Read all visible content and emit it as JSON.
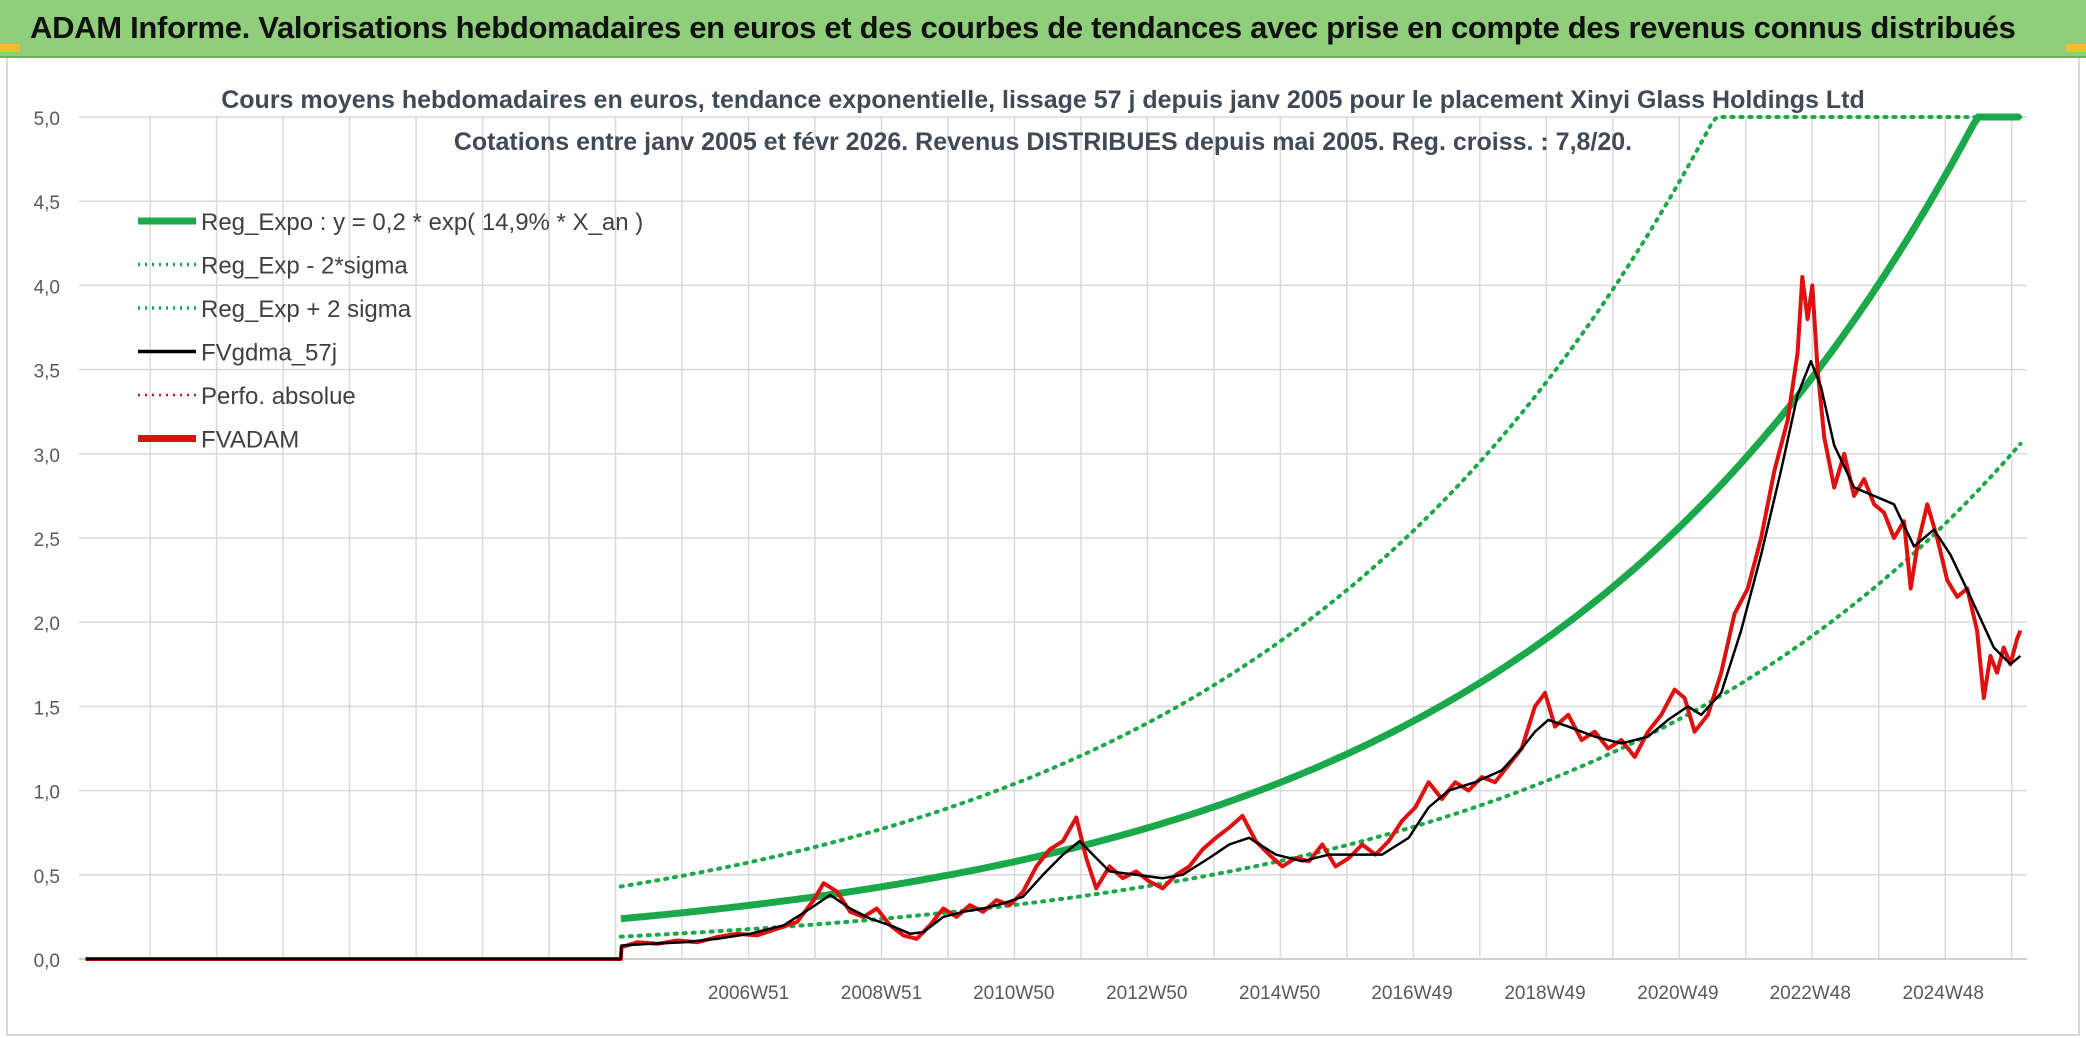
{
  "header": {
    "title": "ADAM Informe. Valorisations hebdomadaires en euros et des courbes de tendances avec prise en compte des revenus connus distribués"
  },
  "colors": {
    "header_bg": "#8fce7a",
    "accent_corner": "#f2c22e",
    "trend": "#1aa84a",
    "price": "#e01010",
    "smooth": "#000000",
    "grid": "#d9d9d9"
  },
  "chart_data": {
    "type": "line",
    "title": "Cours moyens hebdomadaires en euros, tendance exponentielle, lissage 57 j depuis janv 2005 pour le placement Xinyi Glass Holdings Ltd",
    "subtitle": "Cotations entre janv 2005 et févr 2026. Revenus DISTRIBUES depuis mai 2005. Reg. croiss. : 7,8/20.",
    "xlabel": "",
    "ylabel": "",
    "ylim": [
      0,
      5
    ],
    "x_range": [
      1996.9,
      2026.2
    ],
    "y_ticks": [
      "0,0",
      "0,5",
      "1,0",
      "1,5",
      "2,0",
      "2,5",
      "3,0",
      "3,5",
      "4,0",
      "4,5",
      "5,0"
    ],
    "x_tick_labels": [
      {
        "label": "2006W51",
        "x": 2006.97
      },
      {
        "label": "2008W51",
        "x": 2008.97
      },
      {
        "label": "2010W50",
        "x": 2010.96
      },
      {
        "label": "2012W50",
        "x": 2012.96
      },
      {
        "label": "2014W50",
        "x": 2014.96
      },
      {
        "label": "2016W49",
        "x": 2016.95
      },
      {
        "label": "2018W49",
        "x": 2018.95
      },
      {
        "label": "2020W49",
        "x": 2020.95
      },
      {
        "label": "2022W48",
        "x": 2022.94
      },
      {
        "label": "2024W48",
        "x": 2024.94
      }
    ],
    "grid": true,
    "legend_position": "top-left",
    "trend": {
      "coef": 0.2,
      "rate": 0.149,
      "start": 2005.05,
      "end": 2026.1,
      "sigma_factor": 1.8,
      "clip": 5.0
    },
    "series": [
      {
        "name": "Reg_Expo : y = 0,2 * exp( 14,9% *  X_an )",
        "style": "solid-thick",
        "color": "#1aa84a"
      },
      {
        "name": "Reg_Exp - 2*sigma",
        "style": "dotted",
        "color": "#1aa84a"
      },
      {
        "name": "Reg_Exp + 2 sigma",
        "style": "dotted",
        "color": "#1aa84a"
      },
      {
        "name": "FVgdma_57j",
        "style": "solid",
        "color": "#000000",
        "points": [
          [
            1997.0,
            0
          ],
          [
            2005.05,
            0
          ],
          [
            2005.06,
            0.08
          ],
          [
            2005.5,
            0.09
          ],
          [
            2006.0,
            0.1
          ],
          [
            2006.5,
            0.12
          ],
          [
            2007.0,
            0.15
          ],
          [
            2007.5,
            0.2
          ],
          [
            2007.9,
            0.3
          ],
          [
            2008.2,
            0.38
          ],
          [
            2008.5,
            0.3
          ],
          [
            2008.8,
            0.24
          ],
          [
            2009.1,
            0.2
          ],
          [
            2009.4,
            0.15
          ],
          [
            2009.6,
            0.16
          ],
          [
            2009.9,
            0.25
          ],
          [
            2010.2,
            0.28
          ],
          [
            2010.5,
            0.3
          ],
          [
            2010.8,
            0.33
          ],
          [
            2011.1,
            0.37
          ],
          [
            2011.4,
            0.5
          ],
          [
            2011.7,
            0.62
          ],
          [
            2011.95,
            0.7
          ],
          [
            2012.2,
            0.6
          ],
          [
            2012.4,
            0.52
          ],
          [
            2012.8,
            0.5
          ],
          [
            2013.2,
            0.48
          ],
          [
            2013.5,
            0.5
          ],
          [
            2013.9,
            0.6
          ],
          [
            2014.2,
            0.68
          ],
          [
            2014.5,
            0.72
          ],
          [
            2014.9,
            0.62
          ],
          [
            2015.3,
            0.58
          ],
          [
            2015.7,
            0.62
          ],
          [
            2016.1,
            0.62
          ],
          [
            2016.5,
            0.62
          ],
          [
            2016.9,
            0.72
          ],
          [
            2017.2,
            0.9
          ],
          [
            2017.5,
            1.0
          ],
          [
            2017.9,
            1.05
          ],
          [
            2018.3,
            1.12
          ],
          [
            2018.6,
            1.25
          ],
          [
            2018.8,
            1.35
          ],
          [
            2019.0,
            1.42
          ],
          [
            2019.3,
            1.38
          ],
          [
            2019.7,
            1.32
          ],
          [
            2020.1,
            1.28
          ],
          [
            2020.5,
            1.32
          ],
          [
            2020.8,
            1.42
          ],
          [
            2021.1,
            1.5
          ],
          [
            2021.3,
            1.45
          ],
          [
            2021.6,
            1.58
          ],
          [
            2021.9,
            1.95
          ],
          [
            2022.2,
            2.4
          ],
          [
            2022.5,
            2.9
          ],
          [
            2022.75,
            3.35
          ],
          [
            2022.95,
            3.55
          ],
          [
            2023.1,
            3.4
          ],
          [
            2023.3,
            3.05
          ],
          [
            2023.6,
            2.8
          ],
          [
            2023.9,
            2.75
          ],
          [
            2024.2,
            2.7
          ],
          [
            2024.5,
            2.45
          ],
          [
            2024.8,
            2.55
          ],
          [
            2025.05,
            2.4
          ],
          [
            2025.35,
            2.15
          ],
          [
            2025.7,
            1.85
          ],
          [
            2025.95,
            1.75
          ],
          [
            2026.1,
            1.8
          ]
        ]
      },
      {
        "name": "Perfo. absolue",
        "style": "dotted",
        "color": "#e01010"
      },
      {
        "name": "FVADAM",
        "style": "solid-thick",
        "color": "#e01010",
        "points": [
          [
            1997.0,
            0
          ],
          [
            2005.05,
            0
          ],
          [
            2005.06,
            0.07
          ],
          [
            2005.3,
            0.1
          ],
          [
            2005.6,
            0.09
          ],
          [
            2005.9,
            0.11
          ],
          [
            2006.2,
            0.1
          ],
          [
            2006.5,
            0.13
          ],
          [
            2006.8,
            0.15
          ],
          [
            2007.1,
            0.14
          ],
          [
            2007.4,
            0.18
          ],
          [
            2007.7,
            0.22
          ],
          [
            2007.95,
            0.35
          ],
          [
            2008.1,
            0.45
          ],
          [
            2008.3,
            0.4
          ],
          [
            2008.5,
            0.28
          ],
          [
            2008.7,
            0.25
          ],
          [
            2008.9,
            0.3
          ],
          [
            2009.1,
            0.2
          ],
          [
            2009.3,
            0.14
          ],
          [
            2009.5,
            0.12
          ],
          [
            2009.7,
            0.2
          ],
          [
            2009.9,
            0.3
          ],
          [
            2010.1,
            0.25
          ],
          [
            2010.3,
            0.32
          ],
          [
            2010.5,
            0.28
          ],
          [
            2010.7,
            0.35
          ],
          [
            2010.9,
            0.32
          ],
          [
            2011.1,
            0.4
          ],
          [
            2011.3,
            0.55
          ],
          [
            2011.5,
            0.65
          ],
          [
            2011.7,
            0.7
          ],
          [
            2011.9,
            0.84
          ],
          [
            2012.05,
            0.6
          ],
          [
            2012.2,
            0.42
          ],
          [
            2012.4,
            0.55
          ],
          [
            2012.6,
            0.48
          ],
          [
            2012.8,
            0.52
          ],
          [
            2013.0,
            0.46
          ],
          [
            2013.2,
            0.42
          ],
          [
            2013.4,
            0.5
          ],
          [
            2013.6,
            0.55
          ],
          [
            2013.8,
            0.65
          ],
          [
            2014.0,
            0.72
          ],
          [
            2014.2,
            0.78
          ],
          [
            2014.4,
            0.85
          ],
          [
            2014.6,
            0.7
          ],
          [
            2014.8,
            0.62
          ],
          [
            2015.0,
            0.55
          ],
          [
            2015.2,
            0.6
          ],
          [
            2015.4,
            0.58
          ],
          [
            2015.6,
            0.68
          ],
          [
            2015.8,
            0.55
          ],
          [
            2016.0,
            0.6
          ],
          [
            2016.2,
            0.68
          ],
          [
            2016.4,
            0.62
          ],
          [
            2016.6,
            0.7
          ],
          [
            2016.8,
            0.82
          ],
          [
            2017.0,
            0.9
          ],
          [
            2017.2,
            1.05
          ],
          [
            2017.4,
            0.95
          ],
          [
            2017.6,
            1.05
          ],
          [
            2017.8,
            1.0
          ],
          [
            2018.0,
            1.08
          ],
          [
            2018.2,
            1.05
          ],
          [
            2018.4,
            1.15
          ],
          [
            2018.6,
            1.25
          ],
          [
            2018.8,
            1.5
          ],
          [
            2018.95,
            1.58
          ],
          [
            2019.1,
            1.38
          ],
          [
            2019.3,
            1.45
          ],
          [
            2019.5,
            1.3
          ],
          [
            2019.7,
            1.35
          ],
          [
            2019.9,
            1.25
          ],
          [
            2020.1,
            1.3
          ],
          [
            2020.3,
            1.2
          ],
          [
            2020.5,
            1.35
          ],
          [
            2020.7,
            1.45
          ],
          [
            2020.9,
            1.6
          ],
          [
            2021.05,
            1.55
          ],
          [
            2021.2,
            1.35
          ],
          [
            2021.4,
            1.45
          ],
          [
            2021.6,
            1.7
          ],
          [
            2021.8,
            2.05
          ],
          [
            2022.0,
            2.2
          ],
          [
            2022.2,
            2.5
          ],
          [
            2022.4,
            2.9
          ],
          [
            2022.6,
            3.2
          ],
          [
            2022.75,
            3.6
          ],
          [
            2022.82,
            4.05
          ],
          [
            2022.9,
            3.8
          ],
          [
            2022.97,
            4.0
          ],
          [
            2023.05,
            3.5
          ],
          [
            2023.15,
            3.1
          ],
          [
            2023.3,
            2.8
          ],
          [
            2023.45,
            3.0
          ],
          [
            2023.6,
            2.75
          ],
          [
            2023.75,
            2.85
          ],
          [
            2023.9,
            2.7
          ],
          [
            2024.05,
            2.65
          ],
          [
            2024.2,
            2.5
          ],
          [
            2024.35,
            2.6
          ],
          [
            2024.45,
            2.2
          ],
          [
            2024.55,
            2.45
          ],
          [
            2024.7,
            2.7
          ],
          [
            2024.85,
            2.5
          ],
          [
            2025.0,
            2.25
          ],
          [
            2025.15,
            2.15
          ],
          [
            2025.3,
            2.2
          ],
          [
            2025.45,
            1.95
          ],
          [
            2025.55,
            1.55
          ],
          [
            2025.65,
            1.8
          ],
          [
            2025.75,
            1.7
          ],
          [
            2025.85,
            1.85
          ],
          [
            2025.95,
            1.75
          ],
          [
            2026.05,
            1.9
          ],
          [
            2026.1,
            1.95
          ]
        ]
      }
    ]
  }
}
